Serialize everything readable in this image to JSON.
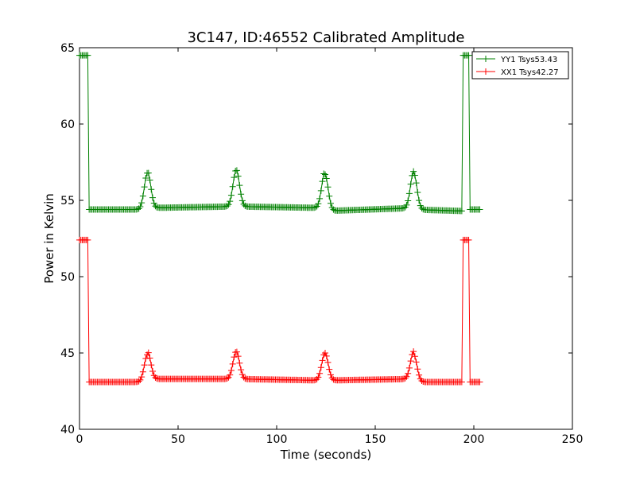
{
  "chart_data": {
    "type": "line",
    "title": "3C147, ID:46552 Calibrated Amplitude",
    "xlabel": "Time (seconds)",
    "ylabel": "Power in Kelvin",
    "xlim": [
      0,
      250
    ],
    "ylim": [
      40,
      65
    ],
    "xticks": [
      "0",
      "50",
      "100",
      "150",
      "200",
      "250"
    ],
    "yticks": [
      "40",
      "45",
      "50",
      "55",
      "60",
      "65"
    ],
    "grid": false,
    "legend_position": "top-right",
    "series": [
      {
        "name": "YY1 Tsys53.43",
        "color": "#008000",
        "marker": "+",
        "baseline": 54.4,
        "cal_level": 64.5,
        "peak_level": 56.8,
        "cal_on": [
          [
            0.5,
            4.5
          ],
          [
            194.5,
            197.5
          ]
        ],
        "peak_times": [
          34.5,
          79.5,
          124.5,
          169.5
        ],
        "x_range": [
          0,
          203
        ],
        "segments": [
          {
            "x": [
              0,
              4.5
            ],
            "y": [
              64.5,
              64.5
            ]
          },
          {
            "x": [
              4.5,
              34.5
            ],
            "y": [
              54.4,
              54.4
            ]
          },
          {
            "x": [
              34.5,
              79.5
            ],
            "y": [
              54.5,
              54.6
            ]
          },
          {
            "x": [
              79.5,
              124.5
            ],
            "y": [
              54.6,
              54.5
            ]
          },
          {
            "x": [
              124.5,
              169.5
            ],
            "y": [
              54.3,
              54.5
            ]
          },
          {
            "x": [
              169.5,
              194.5
            ],
            "y": [
              54.4,
              54.3
            ]
          },
          {
            "x": [
              194.5,
              197.5
            ],
            "y": [
              64.5,
              64.5
            ]
          },
          {
            "x": [
              197.5,
              203
            ],
            "y": [
              54.4,
              54.4
            ]
          }
        ]
      },
      {
        "name": "XX1 Tsys42.27",
        "color": "#ff0000",
        "marker": "+",
        "baseline": 43.2,
        "cal_level": 52.4,
        "peak_level": 45.0,
        "cal_on": [
          [
            0.5,
            4.5
          ],
          [
            194.5,
            197.5
          ]
        ],
        "peak_times": [
          34.5,
          79.5,
          124.5,
          169.5
        ],
        "x_range": [
          0,
          203
        ],
        "segments": [
          {
            "x": [
              0,
              4.5
            ],
            "y": [
              52.4,
              52.4
            ]
          },
          {
            "x": [
              4.5,
              34.5
            ],
            "y": [
              43.1,
              43.1
            ]
          },
          {
            "x": [
              34.5,
              79.5
            ],
            "y": [
              43.3,
              43.3
            ]
          },
          {
            "x": [
              79.5,
              124.5
            ],
            "y": [
              43.3,
              43.2
            ]
          },
          {
            "x": [
              124.5,
              169.5
            ],
            "y": [
              43.2,
              43.3
            ]
          },
          {
            "x": [
              169.5,
              194.5
            ],
            "y": [
              43.1,
              43.1
            ]
          },
          {
            "x": [
              194.5,
              197.5
            ],
            "y": [
              52.4,
              52.4
            ]
          },
          {
            "x": [
              197.5,
              203
            ],
            "y": [
              43.1,
              43.1
            ]
          }
        ]
      }
    ]
  }
}
